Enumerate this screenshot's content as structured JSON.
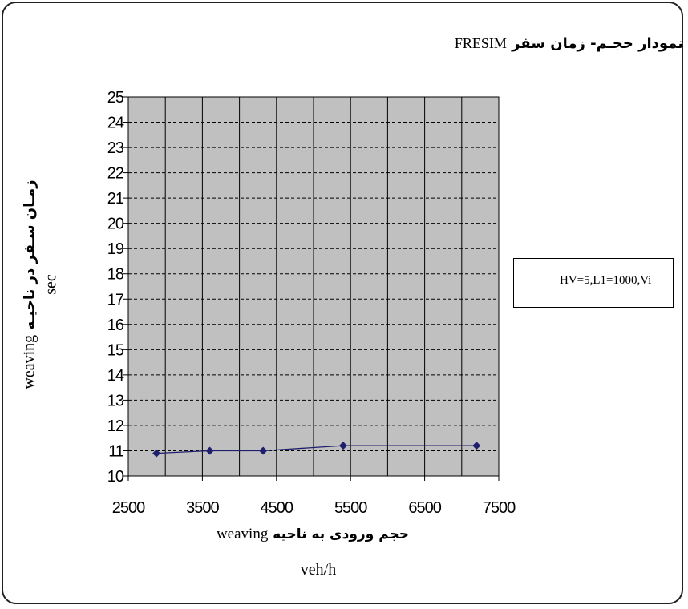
{
  "chart_data": {
    "type": "line",
    "title": "نمودار حجـم- زمان سفر",
    "title_latin": "FRESIM",
    "xlabel_fa": "حجم ورودی به ناحیه",
    "xlabel_latin": "weaving",
    "xunit": "veh/h",
    "ylabel_line1": "زمـان سـفر در ناحيـه",
    "ylabel_latin": "weaving",
    "ylabel_unit": "sec",
    "xlim": [
      2500,
      7500
    ],
    "ylim": [
      10,
      25
    ],
    "x_ticks": [
      "2500",
      "3500",
      "4500",
      "5500",
      "6500",
      "7500"
    ],
    "y_ticks": [
      "10",
      "11",
      "12",
      "13",
      "14",
      "15",
      "16",
      "17",
      "18",
      "19",
      "20",
      "21",
      "22",
      "23",
      "24",
      "25"
    ],
    "grid": true,
    "legend_position": "right",
    "plot_background": "#c0c0c0",
    "series": [
      {
        "name": "HV=5,L1=1000,Vi",
        "color": "#1f1f6e",
        "x": [
          2880,
          3600,
          4320,
          5400,
          7200
        ],
        "y": [
          10.9,
          11.0,
          11.0,
          11.2,
          11.2
        ]
      }
    ]
  }
}
